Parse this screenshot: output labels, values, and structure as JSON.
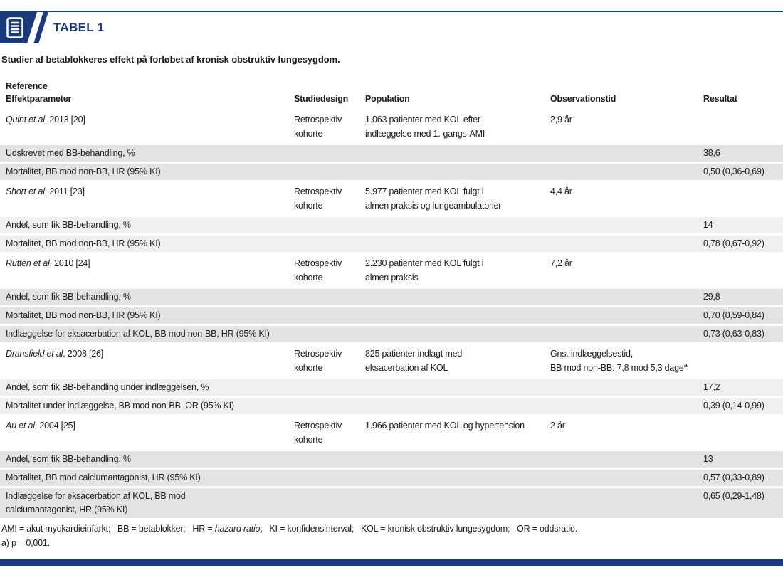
{
  "colors": {
    "navy": "#1b3a7e",
    "row-dark": "#e3e3e6",
    "row-light": "#f0f0f2",
    "text": "#1c1c1c"
  },
  "header": {
    "badge_title": "TABEL 1",
    "subtitle": "Studier af betablokkeres effekt på forløbet af kronisk obstruktiv lungesygdom."
  },
  "table": {
    "column_headers": {
      "reference": "Reference",
      "effektparameter": "Effektparameter",
      "studiedesign": "Studiedesign",
      "population": "Population",
      "observationstid": "Observationstid",
      "resultat": "Resultat"
    },
    "rows": [
      {
        "type": "study",
        "shade": "dark",
        "ref_italic": "Quint et al",
        "ref_rest": ", 2013 [20]",
        "design": "Retrospektiv\nkohorte",
        "population": "1.063 patienter med KOL efter\nindlæggelse med 1.-gangs-AMI",
        "observation": "2,9 år",
        "result": ""
      },
      {
        "type": "effect",
        "shade": "dark",
        "label": "Udskrevet med BB-behandling, %",
        "result": "38,6"
      },
      {
        "type": "effect",
        "shade": "dark",
        "label": "Mortalitet, BB mod non-BB, HR (95% KI)",
        "result": "0,50 (0,36-0,69)"
      },
      {
        "type": "study",
        "shade": "light",
        "ref_italic": "Short et al",
        "ref_rest": ", 2011 [23]",
        "design": "Retrospektiv\nkohorte",
        "population": "5.977 patienter med KOL fulgt i\nalmen praksis og lungeambulatorier",
        "observation": "4,4 år",
        "result": ""
      },
      {
        "type": "effect",
        "shade": "light",
        "label": "Andel, som fik BB-behandling, %",
        "result": "14"
      },
      {
        "type": "effect",
        "shade": "light",
        "label": "Mortalitet, BB mod non-BB, HR (95% KI)",
        "result": "0,78 (0,67-0,92)"
      },
      {
        "type": "study",
        "shade": "dark",
        "ref_italic": "Rutten et al",
        "ref_rest": ", 2010 [24]",
        "design": "Retrospektiv\nkohorte",
        "population": "2.230 patienter med KOL fulgt i\nalmen praksis",
        "observation": "7,2 år",
        "result": ""
      },
      {
        "type": "effect",
        "shade": "dark",
        "label": "Andel, som fik BB-behandling, %",
        "result": "29,8"
      },
      {
        "type": "effect",
        "shade": "dark",
        "label": "Mortalitet, BB mod non-BB, HR (95% KI)",
        "result": "0,70 (0,59-0,84)"
      },
      {
        "type": "effect",
        "shade": "dark",
        "label": "Indlæggelse for eksacerbation af KOL, BB mod non-BB, HR (95% KI)",
        "result": "0,73 (0,63-0,83)"
      },
      {
        "type": "study",
        "shade": "light",
        "ref_italic": "Dransfield et al",
        "ref_rest": ", 2008 [26]",
        "design": "Retrospektiv\nkohorte",
        "population": "825 patienter indlagt med\neksacerbation af KOL",
        "observation": "Gns. indlæggelsestid,\nBB mod non-BB: 7,8 mod 5,3 dage",
        "observation_sup": "a",
        "result": ""
      },
      {
        "type": "effect",
        "shade": "light",
        "label": "Andel, som fik BB-behandling under indlæggelsen, %",
        "result": "17,2"
      },
      {
        "type": "effect",
        "shade": "light",
        "label": "Mortalitet under indlæggelse, BB mod non-BB, OR (95% KI)",
        "result": "0,39 (0,14-0,99)"
      },
      {
        "type": "study",
        "shade": "dark",
        "ref_italic": "Au et al",
        "ref_rest": ", 2004 [25]",
        "design": "Retrospektiv\nkohorte",
        "population": "1.966 patienter med KOL og hypertension",
        "observation": "2 år",
        "result": ""
      },
      {
        "type": "effect",
        "shade": "dark",
        "label": "Andel, som fik BB-behandling, %",
        "result": "13"
      },
      {
        "type": "effect",
        "shade": "dark",
        "label": "Mortalitet, BB mod calciumantagonist, HR (95% KI)",
        "result": "0,57 (0,33-0,89)"
      },
      {
        "type": "effect",
        "shade": "dark",
        "label": "Indlæggelse for eksacerbation af KOL, BB mod\ncalciumantagonist, HR (95% KI)",
        "result": "0,65 (0,29-1,48)"
      }
    ]
  },
  "footnotes": {
    "abbreviations": [
      {
        "text": "AMI = akut myokardieinfarkt;   BB = betablokker;   HR = ",
        "italic": false
      },
      {
        "text": "hazard ratio",
        "italic": true
      },
      {
        "text": ";   KI = konfidensinterval;   KOL = kronisk obstruktiv lungesygdom;   OR = oddsratio.",
        "italic": false
      }
    ],
    "note_a": "a) p = 0,001."
  }
}
